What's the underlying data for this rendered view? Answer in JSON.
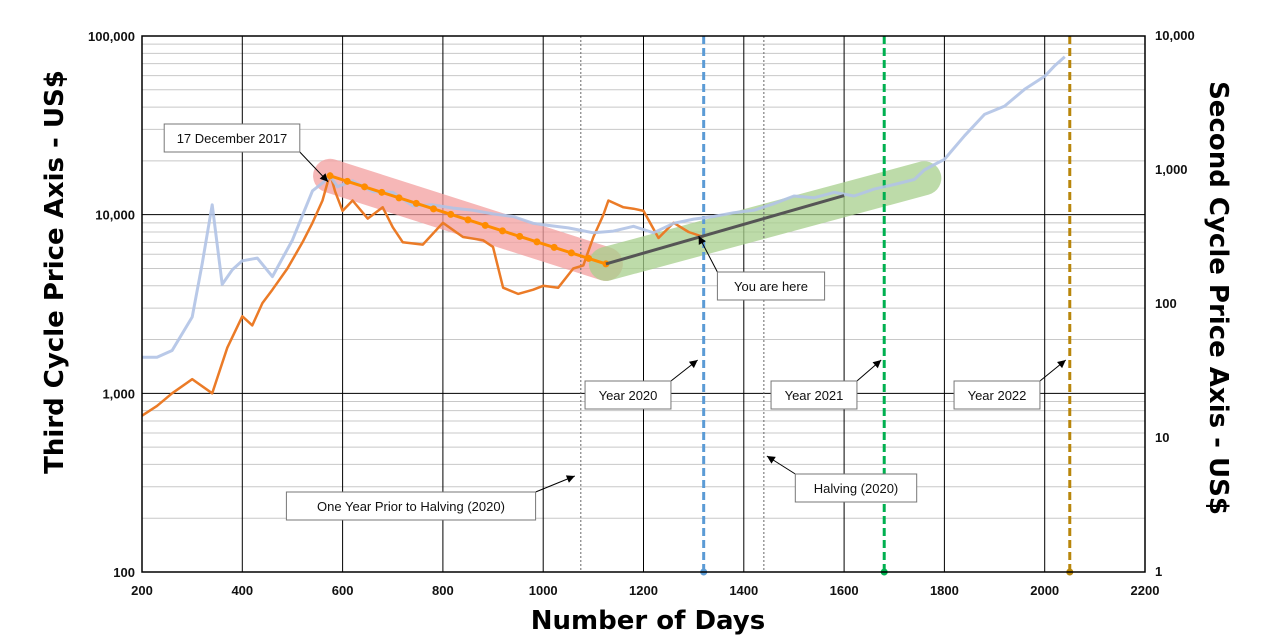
{
  "chart_data": {
    "type": "line",
    "xlabel": "Number of Days",
    "ylabel_left": "Third Cycle Price Axis - US$",
    "ylabel_right": "Second Cycle Price Axis - US$",
    "x_scale": "linear",
    "xlim": [
      200,
      2200
    ],
    "x_ticks": [
      "200",
      "400",
      "600",
      "800",
      "1000",
      "1200",
      "1400",
      "1600",
      "1800",
      "2000",
      "2200"
    ],
    "y_scale_left": "log",
    "ylim_left": [
      100,
      100000
    ],
    "y_ticks_left": [
      "100",
      "1,000",
      "10,000",
      "100,000"
    ],
    "y_scale_right": "log",
    "ylim_right": [
      1,
      10000
    ],
    "y_ticks_right": [
      "1",
      "10",
      "100",
      "1,000",
      "10,000"
    ],
    "grid": true,
    "series": [
      {
        "color": "#eb7b27",
        "axis": "left",
        "x": [
          200,
          230,
          260,
          300,
          340,
          370,
          400,
          420,
          440,
          460,
          490,
          520,
          540,
          560,
          575,
          585,
          600,
          620,
          650,
          680,
          700,
          720,
          760,
          800,
          840,
          880,
          900,
          920,
          950,
          980,
          1000,
          1030,
          1060,
          1080,
          1100,
          1120,
          1130,
          1160,
          1180,
          1200,
          1230,
          1260,
          1290,
          1320
        ],
        "y": [
          750,
          850,
          1000,
          1200,
          1000,
          1800,
          2700,
          2400,
          3200,
          3800,
          5000,
          7000,
          9000,
          12000,
          17000,
          13500,
          10500,
          12000,
          9500,
          11000,
          8500,
          7000,
          6800,
          9000,
          7500,
          7200,
          6600,
          3900,
          3600,
          3800,
          4000,
          3900,
          5000,
          5200,
          7500,
          10000,
          12000,
          11000,
          10800,
          10500,
          7400,
          9000,
          8000,
          7500
        ]
      },
      {
        "color": "#b1c3e6",
        "axis": "right",
        "x": [
          200,
          230,
          260,
          300,
          320,
          340,
          360,
          380,
          400,
          430,
          460,
          500,
          540,
          560,
          575,
          590,
          620,
          660,
          700,
          740,
          780,
          820,
          860,
          900,
          940,
          980,
          1000,
          1050,
          1100,
          1140,
          1180,
          1220,
          1260,
          1300,
          1340,
          1380,
          1420,
          1460,
          1500,
          1540,
          1580,
          1620,
          1660,
          1700,
          1740,
          1760,
          1780,
          1800,
          1840,
          1880,
          1920,
          1960,
          2000,
          2020,
          2040
        ],
        "y": [
          40,
          40,
          45,
          80,
          200,
          550,
          140,
          180,
          210,
          220,
          160,
          300,
          700,
          800,
          900,
          750,
          830,
          690,
          680,
          540,
          550,
          520,
          500,
          470,
          450,
          400,
          390,
          370,
          340,
          350,
          380,
          340,
          400,
          430,
          450,
          480,
          500,
          560,
          640,
          620,
          680,
          640,
          720,
          780,
          850,
          1000,
          1100,
          1200,
          1800,
          2600,
          3000,
          4000,
          5000,
          6000,
          7000
        ]
      }
    ],
    "annotations": [
      {
        "text": "17 December 2017",
        "x": 575,
        "y": 16500
      },
      {
        "text": "You are here",
        "x": 1300,
        "y": 8000
      },
      {
        "text": "Year 2020",
        "x": 1320,
        "y": 1500
      },
      {
        "text": "Year 2021",
        "x": 1680,
        "y": 1500
      },
      {
        "text": "Year 2022",
        "x": 2050,
        "y": 1500
      },
      {
        "text": "One Year Prior to Halving (2020)",
        "x": 1075,
        "y": 350
      },
      {
        "text": "Halving (2020)",
        "x": 1440,
        "y": 350
      }
    ],
    "vertical_markers": [
      {
        "x": 1075,
        "style": "dotted-gray"
      },
      {
        "x": 1440,
        "style": "dotted-gray"
      },
      {
        "x": 1320,
        "style": "dashed",
        "color": "#5b9bd5"
      },
      {
        "x": 1680,
        "style": "dashed",
        "color": "#00b050"
      },
      {
        "x": 2050,
        "style": "dashed",
        "color": "#b8860b"
      }
    ],
    "trend_bands": [
      {
        "color": "#f4a0a0",
        "x": [
          575,
          1125
        ],
        "y": [
          16500,
          5300
        ]
      },
      {
        "color": "#a8d08d",
        "x": [
          1125,
          1760
        ],
        "y": [
          5300,
          16000
        ]
      }
    ],
    "trend_lines": [
      {
        "color": "#ff8c00",
        "x": [
          575,
          1125
        ],
        "y": [
          16500,
          5300
        ],
        "markers": true
      },
      {
        "color": "#555555",
        "x": [
          1125,
          1600
        ],
        "y": [
          5300,
          12800
        ]
      }
    ]
  }
}
